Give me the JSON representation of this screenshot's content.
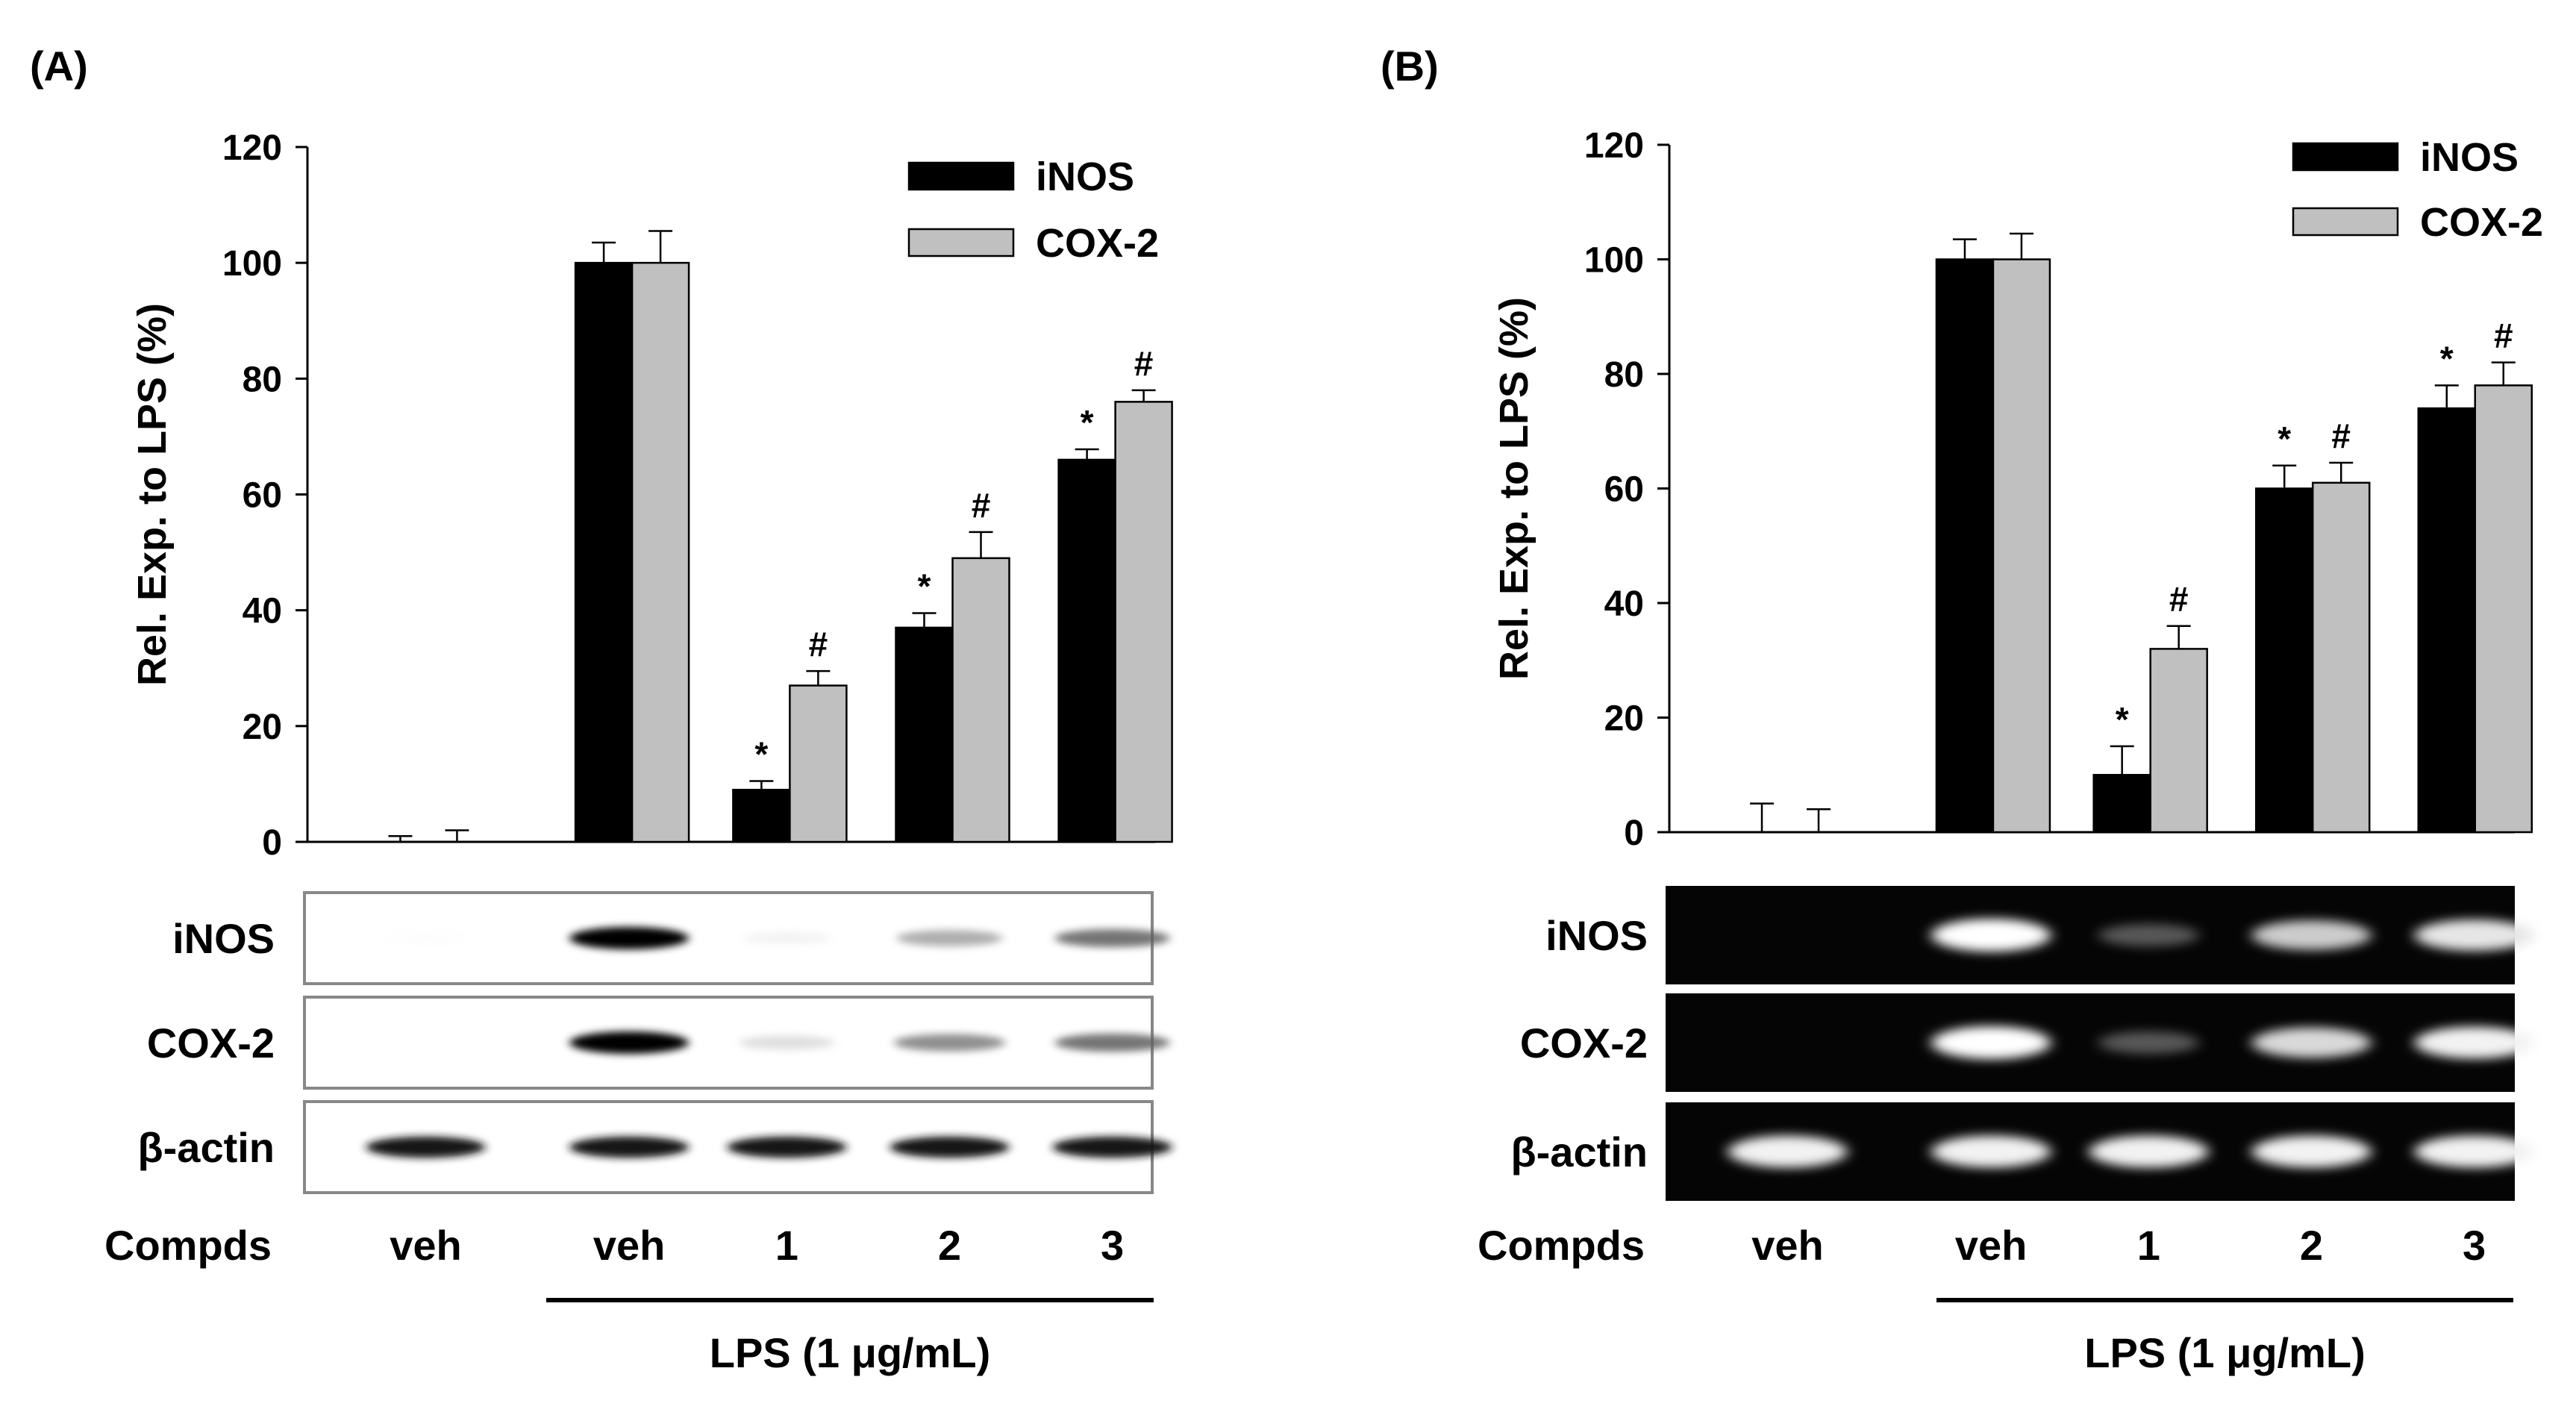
{
  "chart_data": [
    {
      "panel": "(A)",
      "type": "bar",
      "ylabel": "Rel. Exp. to LPS (%)",
      "ylim": [
        0,
        120
      ],
      "yticks": [
        0,
        20,
        40,
        60,
        80,
        100,
        120
      ],
      "categories": [
        "veh",
        "veh",
        "1",
        "2",
        "3"
      ],
      "series": [
        {
          "name": "iNOS",
          "color": "#000000",
          "values": [
            0,
            100,
            9,
            37,
            66
          ],
          "errors": [
            1,
            3.5,
            1.5,
            2.5,
            1.8
          ],
          "markers": [
            "",
            "",
            "*",
            "*",
            "*"
          ]
        },
        {
          "name": "COX-2",
          "color": "#c0c0c0",
          "values": [
            0,
            100,
            27,
            49,
            76
          ],
          "errors": [
            2,
            5.5,
            2.5,
            4.5,
            2
          ],
          "markers": [
            "",
            "",
            "#",
            "#",
            "#"
          ]
        }
      ],
      "blot": {
        "style": "western",
        "rows": [
          {
            "label": "iNOS",
            "intensity": [
              0.03,
              1.0,
              0.12,
              0.45,
              0.62
            ]
          },
          {
            "label": "COX-2",
            "intensity": [
              0,
              1.0,
              0.25,
              0.55,
              0.62
            ]
          },
          {
            "label": "β-actin",
            "intensity": [
              0.9,
              0.9,
              0.9,
              0.9,
              0.9
            ]
          }
        ]
      },
      "compds_label": "Compds",
      "lps_label": "LPS (1 μg/mL)"
    },
    {
      "panel": "(B)",
      "type": "bar",
      "ylabel": "Rel. Exp. to LPS (%)",
      "ylim": [
        0,
        120
      ],
      "yticks": [
        0,
        20,
        40,
        60,
        80,
        100,
        120
      ],
      "categories": [
        "veh",
        "veh",
        "1",
        "2",
        "3"
      ],
      "series": [
        {
          "name": "iNOS",
          "color": "#000000",
          "values": [
            0,
            100,
            10,
            60,
            74
          ],
          "errors": [
            5,
            3.5,
            5,
            4,
            4
          ],
          "markers": [
            "",
            "",
            "*",
            "*",
            "*"
          ]
        },
        {
          "name": "COX-2",
          "color": "#c0c0c0",
          "values": [
            0,
            100,
            32,
            61,
            78
          ],
          "errors": [
            4,
            4.5,
            4,
            3.5,
            4
          ],
          "markers": [
            "",
            "",
            "#",
            "#",
            "#"
          ]
        }
      ],
      "blot": {
        "style": "gel",
        "rows": [
          {
            "label": "iNOS",
            "intensity": [
              0,
              1.0,
              0.35,
              0.8,
              0.9
            ]
          },
          {
            "label": "COX-2",
            "intensity": [
              0,
              1.0,
              0.35,
              0.85,
              0.95
            ]
          },
          {
            "label": "β-actin",
            "intensity": [
              0.95,
              0.95,
              0.95,
              0.95,
              0.95
            ]
          }
        ]
      },
      "compds_label": "Compds",
      "lps_label": "LPS (1 μg/mL)"
    }
  ]
}
